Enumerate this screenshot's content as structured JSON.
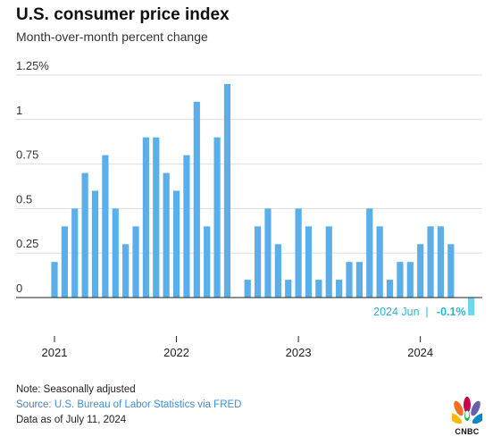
{
  "title": "U.S. consumer price index",
  "subtitle": "Month-over-month percent change",
  "chart_data": {
    "type": "bar",
    "ylim": [
      -0.1,
      1.25
    ],
    "yticks": [
      0,
      0.25,
      0.5,
      0.75,
      1,
      1.25
    ],
    "ytick_labels": [
      "0",
      "0.25",
      "0.5",
      "0.75",
      "1",
      "1.25%"
    ],
    "year_labels": [
      "2021",
      "2022",
      "2023",
      "2024"
    ],
    "categories": [
      "2021-01",
      "2021-02",
      "2021-03",
      "2021-04",
      "2021-05",
      "2021-06",
      "2021-07",
      "2021-08",
      "2021-09",
      "2021-10",
      "2021-11",
      "2021-12",
      "2022-01",
      "2022-02",
      "2022-03",
      "2022-04",
      "2022-05",
      "2022-06",
      "2022-07",
      "2022-08",
      "2022-09",
      "2022-10",
      "2022-11",
      "2022-12",
      "2023-01",
      "2023-02",
      "2023-03",
      "2023-04",
      "2023-05",
      "2023-06",
      "2023-07",
      "2023-08",
      "2023-09",
      "2023-10",
      "2023-11",
      "2023-12",
      "2024-01",
      "2024-02",
      "2024-03",
      "2024-04",
      "2024-05",
      "2024-06"
    ],
    "values": [
      0.2,
      0.4,
      0.5,
      0.7,
      0.6,
      0.8,
      0.5,
      0.3,
      0.4,
      0.9,
      0.9,
      0.7,
      0.6,
      0.8,
      1.1,
      0.4,
      0.9,
      1.2,
      0.0,
      0.1,
      0.4,
      0.5,
      0.3,
      0.1,
      0.5,
      0.4,
      0.1,
      0.4,
      0.1,
      0.2,
      0.2,
      0.5,
      0.4,
      0.1,
      0.2,
      0.2,
      0.3,
      0.4,
      0.4,
      0.3,
      0.0,
      -0.1
    ],
    "grid": true,
    "colors": {
      "bar": "#5aaeea",
      "highlight": "#6fd6ee",
      "grid": "#dddddd",
      "zero_line": "#222222",
      "annotation": "#2bb3d6"
    },
    "annotation": {
      "label": "2024 Jun",
      "separator": "|",
      "value": "-0.1%"
    }
  },
  "footer": {
    "note": "Note: Seasonally adjusted",
    "source_label": "Source: ",
    "source_name": "U.S. Bureau of Labor Statistics",
    "via": " via ",
    "via_name": "FRED",
    "asof": "Data as of July 11, 2024"
  },
  "logo": {
    "text": "CNBC",
    "name": "nbc-peacock-icon"
  }
}
